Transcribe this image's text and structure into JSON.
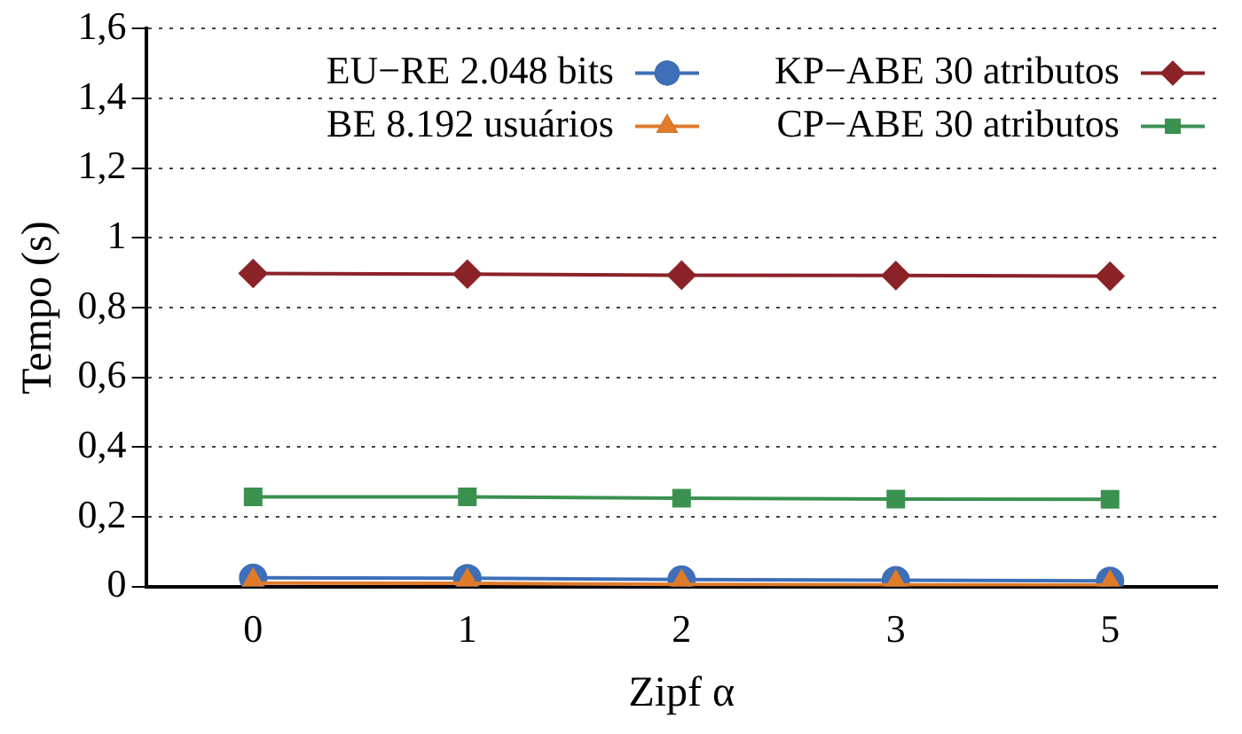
{
  "chart_data": {
    "type": "line",
    "xlabel": "Zipf α",
    "ylabel": "Tempo (s)",
    "categories": [
      "0",
      "1",
      "2",
      "3",
      "5"
    ],
    "series": [
      {
        "name": "EU−RE 2.048 bits",
        "color": "#3e6fb8",
        "marker": "circle",
        "values": [
          0.025,
          0.024,
          0.02,
          0.018,
          0.016
        ]
      },
      {
        "name": "BE 8.192 usuários",
        "color": "#e07b2a",
        "marker": "triangle",
        "values": [
          0.01,
          0.009,
          0.006,
          0.005,
          0.004
        ]
      },
      {
        "name": "KP−ABE 30 atributos",
        "color": "#8b2228",
        "marker": "diamond",
        "values": [
          0.898,
          0.896,
          0.893,
          0.892,
          0.89
        ]
      },
      {
        "name": "CP−ABE 30 atributos",
        "color": "#3a9150",
        "marker": "square",
        "values": [
          0.257,
          0.257,
          0.253,
          0.251,
          0.25
        ]
      }
    ],
    "ylim": [
      0,
      1.6
    ],
    "yticks": [
      {
        "value": 0,
        "label": "0"
      },
      {
        "value": 0.2,
        "label": "0,2"
      },
      {
        "value": 0.4,
        "label": "0,4"
      },
      {
        "value": 0.6,
        "label": "0,6"
      },
      {
        "value": 0.8,
        "label": "0,8"
      },
      {
        "value": 1,
        "label": "1"
      },
      {
        "value": 1.2,
        "label": "1,2"
      },
      {
        "value": 1.4,
        "label": "1,4"
      },
      {
        "value": 1.6,
        "label": "1,6"
      }
    ],
    "grid": "y",
    "legend": "top right",
    "line_style": "solid"
  }
}
